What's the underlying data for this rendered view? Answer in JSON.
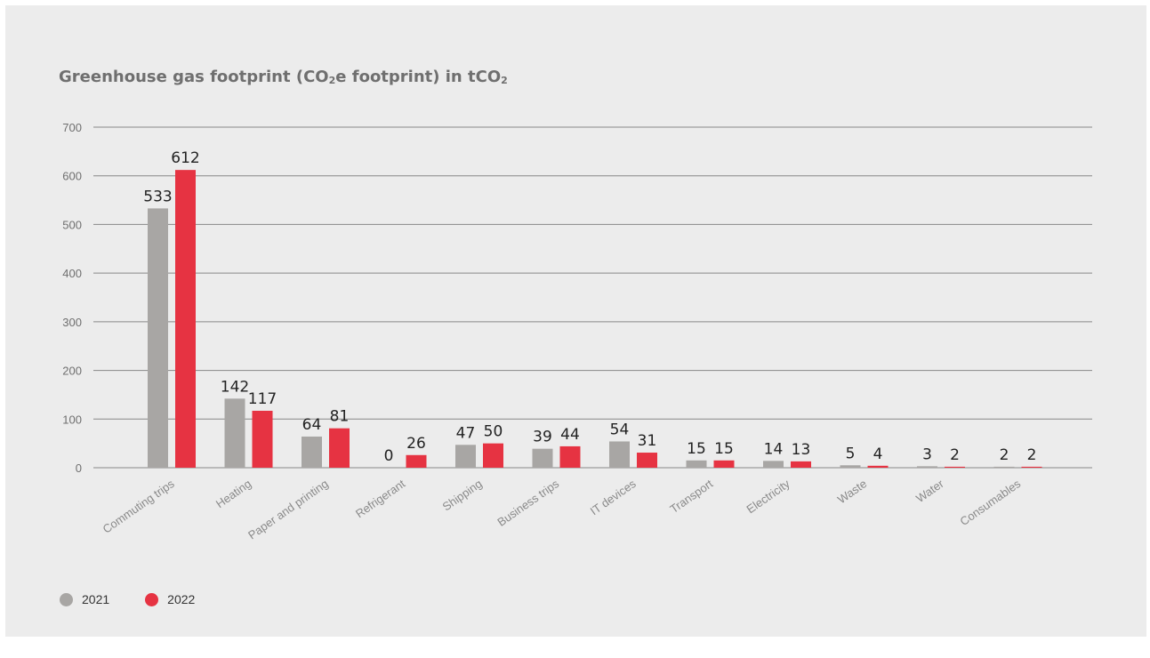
{
  "title": {
    "main": "Greenhouse gas footprint (CO",
    "sub1": "2",
    "mid": "e footprint) in tCO",
    "sub2": "2"
  },
  "colors": {
    "series_2021": "#a8a6a4",
    "series_2022": "#e63342",
    "grid": "#888888",
    "background": "#ececec"
  },
  "chart_data": {
    "type": "bar",
    "title": "Greenhouse gas footprint (CO2e footprint) in tCO2",
    "xlabel": "",
    "ylabel": "",
    "ylim": [
      0,
      700
    ],
    "yticks": [
      0,
      100,
      200,
      300,
      400,
      500,
      600,
      700
    ],
    "grid": true,
    "legend_position": "bottom-left",
    "categories": [
      "Commuting trips",
      "Heating",
      "Paper and printing",
      "Refrigerant",
      "Shipping",
      "Business trips",
      "IT devices",
      "Transport",
      "Electricity",
      "Waste",
      "Water",
      "Consumables"
    ],
    "series": [
      {
        "name": "2021",
        "color": "#a8a6a4",
        "values": [
          533,
          142,
          64,
          0,
          47,
          39,
          54,
          15,
          14,
          5,
          3,
          2
        ]
      },
      {
        "name": "2022",
        "color": "#e63342",
        "values": [
          612,
          117,
          81,
          26,
          50,
          44,
          31,
          15,
          13,
          4,
          2,
          2
        ]
      }
    ]
  }
}
